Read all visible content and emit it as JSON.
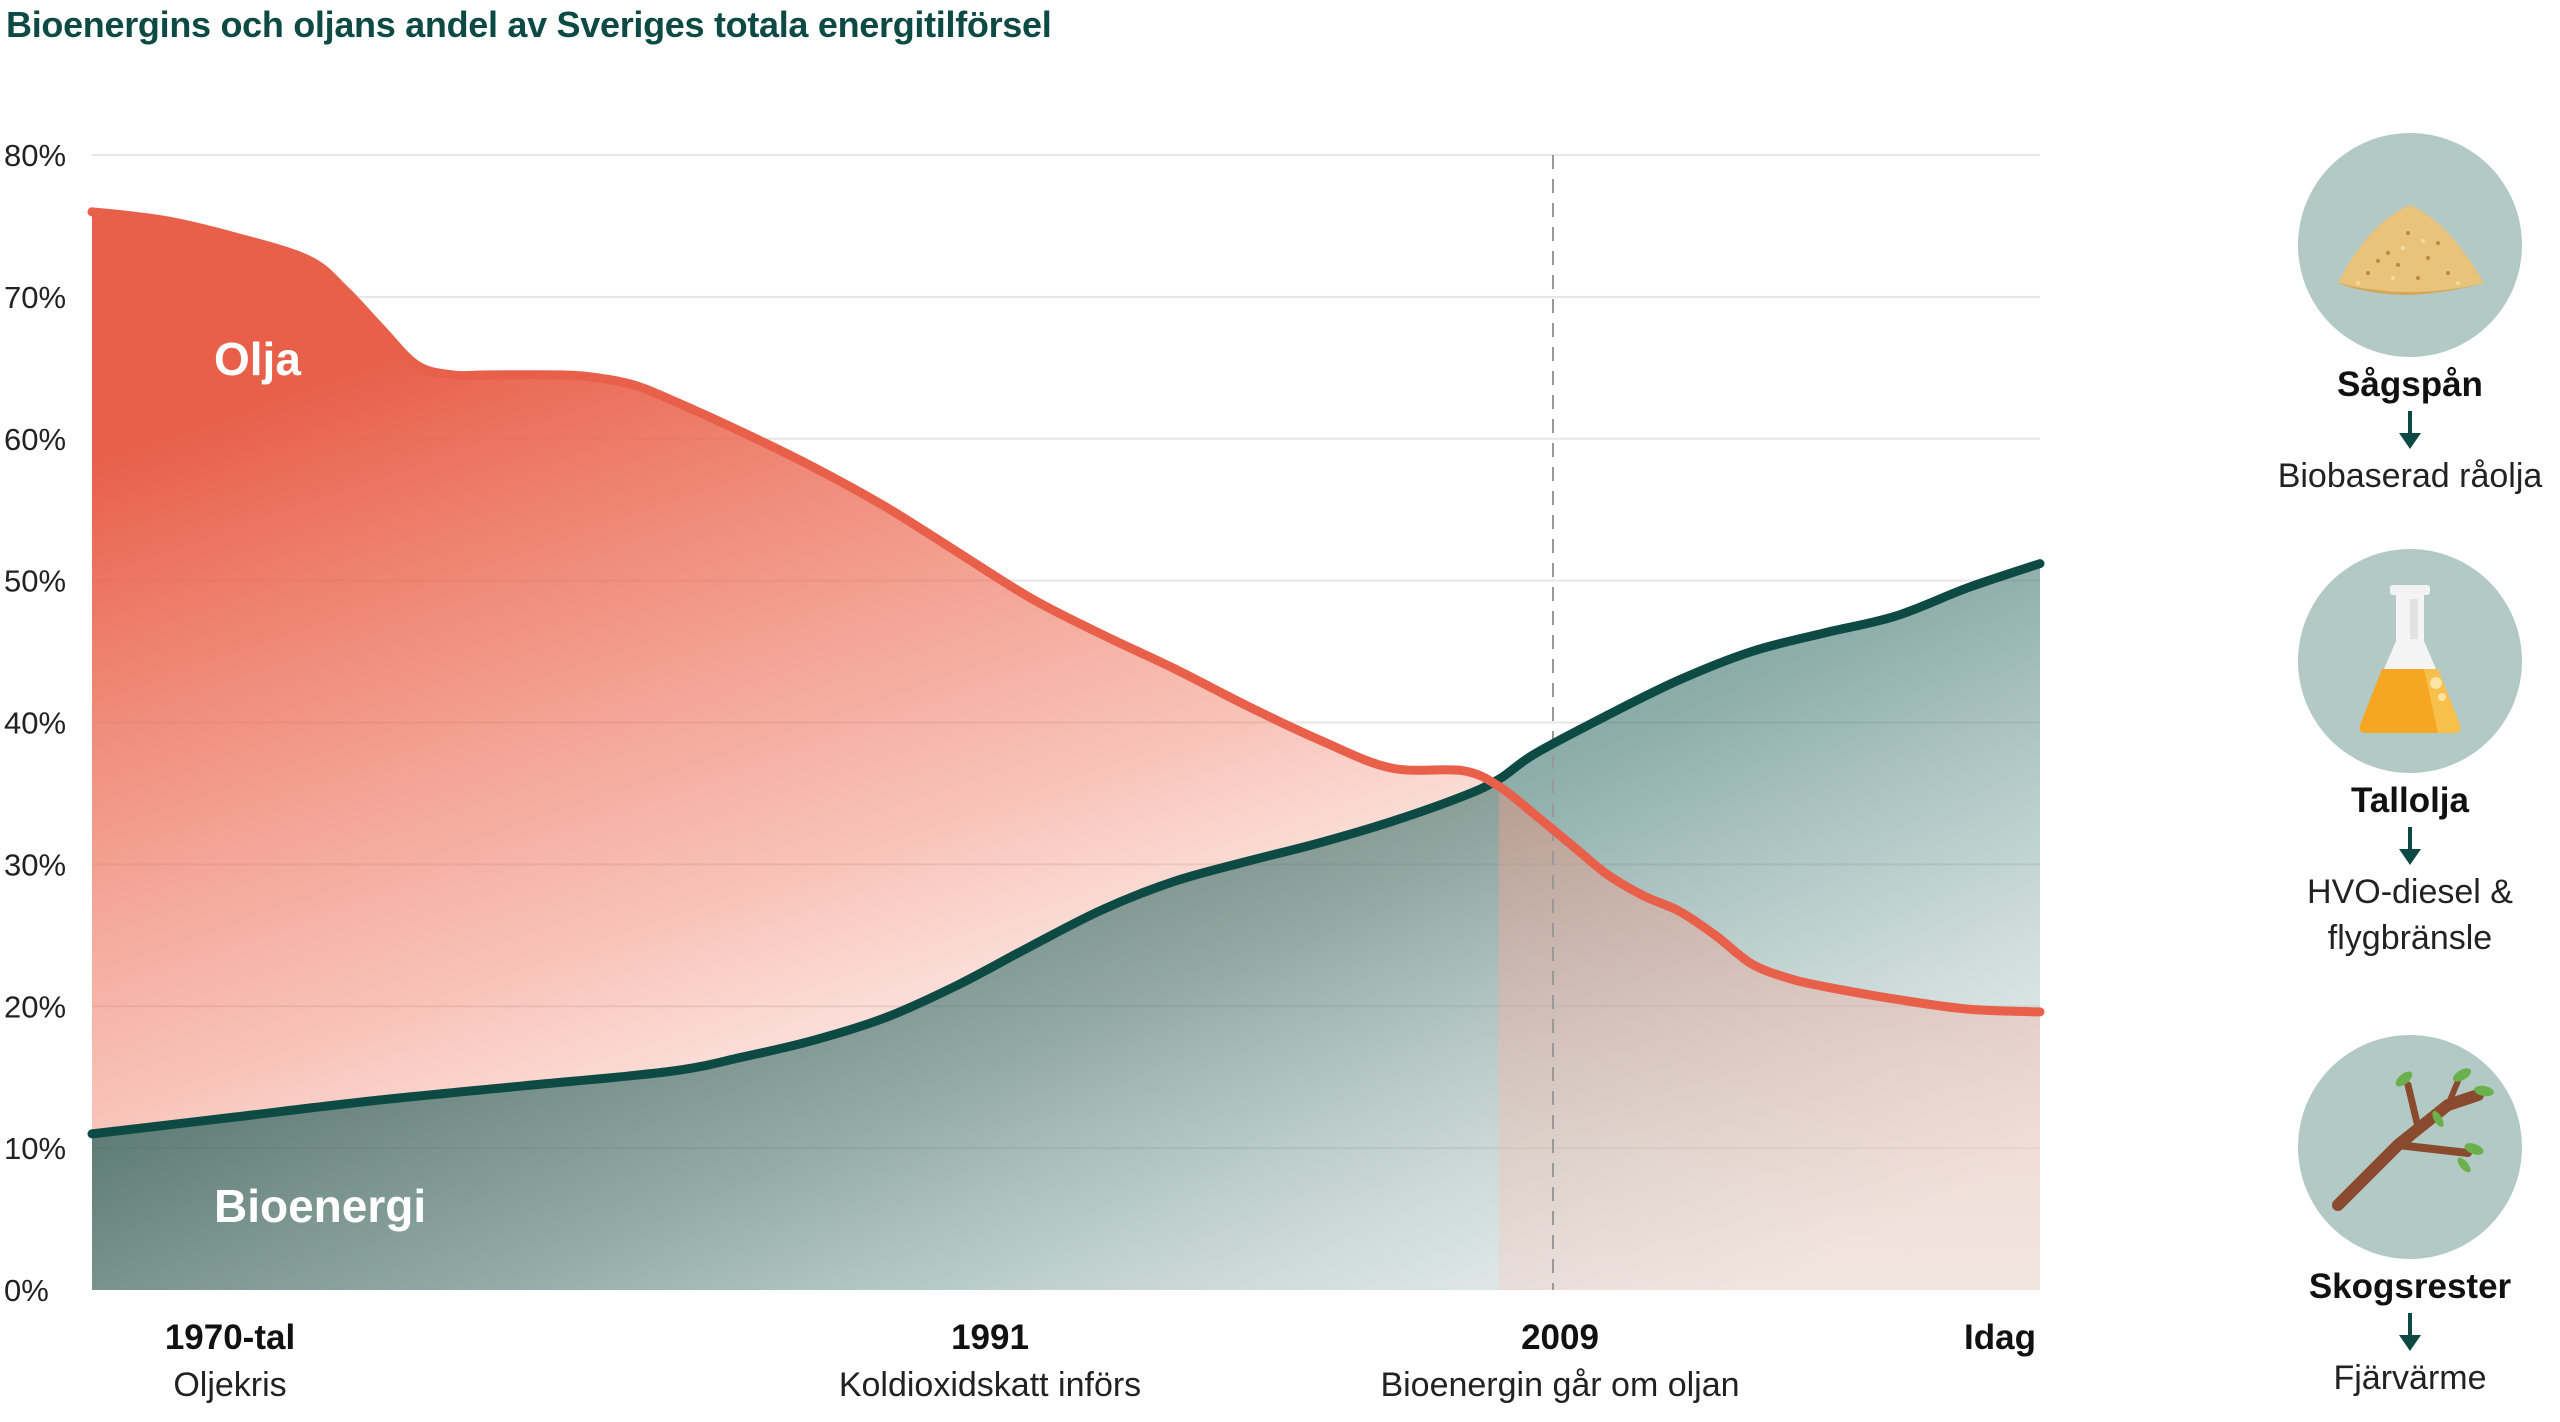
{
  "title": "Bioenergins och oljans andel av Sveriges totala energitilförsel",
  "chart_data": {
    "type": "area",
    "title": "Bioenergins och oljans andel av Sveriges totala energitilförsel",
    "ylabel": "",
    "xlabel": "",
    "ylim": [
      0,
      80
    ],
    "y_ticks": [
      "0%",
      "10%",
      "20%",
      "30%",
      "40%",
      "50%",
      "60%",
      "70%",
      "80%"
    ],
    "x_range": [
      1970,
      2024
    ],
    "series": [
      {
        "name": "Olja",
        "color": "#e8604a",
        "points": [
          [
            1970,
            76
          ],
          [
            1972,
            75.4
          ],
          [
            1974,
            74.2
          ],
          [
            1976,
            72.6
          ],
          [
            1977,
            70.5
          ],
          [
            1978,
            67.8
          ],
          [
            1979,
            65.2
          ],
          [
            1980,
            64.5
          ],
          [
            1981,
            64.5
          ],
          [
            1983,
            64.5
          ],
          [
            1984,
            64.3
          ],
          [
            1985,
            63.8
          ],
          [
            1986,
            62.8
          ],
          [
            1988,
            60.5
          ],
          [
            1990,
            58.0
          ],
          [
            1992,
            55.2
          ],
          [
            1994,
            52.0
          ],
          [
            1996,
            48.8
          ],
          [
            1998,
            46.2
          ],
          [
            2000,
            43.8
          ],
          [
            2002,
            41.2
          ],
          [
            2004,
            38.8
          ],
          [
            2006,
            36.8
          ],
          [
            2008,
            36.6
          ],
          [
            2009,
            35.5
          ],
          [
            2010,
            33.5
          ],
          [
            2011,
            31.4
          ],
          [
            2012,
            29.3
          ],
          [
            2013,
            27.8
          ],
          [
            2014,
            26.7
          ],
          [
            2015,
            25.0
          ],
          [
            2016,
            23.0
          ],
          [
            2017,
            22.0
          ],
          [
            2018,
            21.4
          ],
          [
            2020,
            20.5
          ],
          [
            2022,
            19.8
          ],
          [
            2024,
            19.6
          ]
        ]
      },
      {
        "name": "Bioenergi",
        "color": "#0d4a44",
        "points": [
          [
            1970,
            11.0
          ],
          [
            1974,
            12.2
          ],
          [
            1978,
            13.4
          ],
          [
            1982,
            14.4
          ],
          [
            1986,
            15.4
          ],
          [
            1988,
            16.4
          ],
          [
            1990,
            17.6
          ],
          [
            1992,
            19.2
          ],
          [
            1994,
            21.5
          ],
          [
            1996,
            24.2
          ],
          [
            1998,
            26.8
          ],
          [
            2000,
            28.8
          ],
          [
            2002,
            30.2
          ],
          [
            2004,
            31.5
          ],
          [
            2006,
            33.0
          ],
          [
            2008,
            34.8
          ],
          [
            2009,
            36.0
          ],
          [
            2010,
            37.8
          ],
          [
            2012,
            40.5
          ],
          [
            2014,
            43.0
          ],
          [
            2016,
            45.0
          ],
          [
            2018,
            46.3
          ],
          [
            2020,
            47.5
          ],
          [
            2022,
            49.5
          ],
          [
            2024,
            51.2
          ]
        ]
      }
    ],
    "series_labels": {
      "olja": "Olja",
      "bioenergi": "Bioenergi"
    },
    "annotations": [
      {
        "year_label": "1970-tal",
        "text": "Oljekris",
        "x": 1973.7
      },
      {
        "year_label": "1991",
        "text": "Koldioxidskatt införs",
        "x": 1995.7
      },
      {
        "year_label": "2009",
        "text": "Bioenergin går om oljan",
        "x": 2010.5,
        "reference_line": true
      },
      {
        "year_label": "Idag",
        "text": "",
        "x": 2023.7
      }
    ]
  },
  "sidebar": [
    {
      "icon": "sawdust-icon",
      "title": "Sågspån",
      "result": "Biobaserad råolja"
    },
    {
      "icon": "flask-icon",
      "title": "Tallolja",
      "result": "HVO-diesel & flygbränsle"
    },
    {
      "icon": "branch-icon",
      "title": "Skogsrester",
      "result": "Fjärvärme"
    }
  ],
  "colors": {
    "oil": "#e8604a",
    "bio": "#0d4a44",
    "circle": "#b3c9c6"
  }
}
